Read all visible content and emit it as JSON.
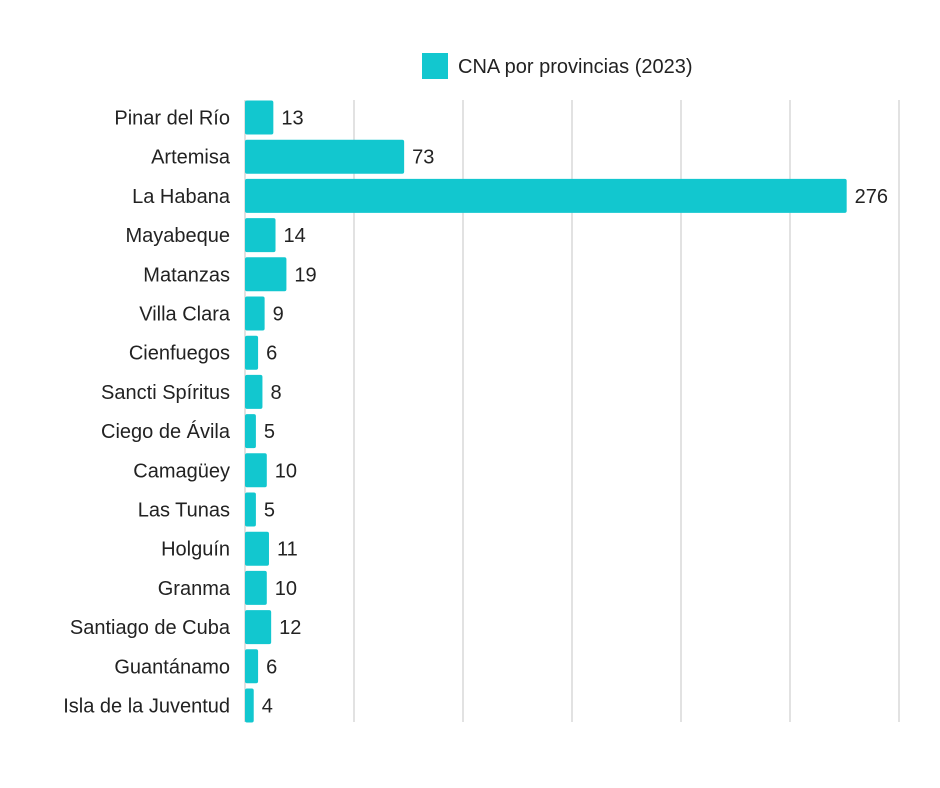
{
  "chart_data": {
    "type": "bar",
    "orientation": "horizontal",
    "categories": [
      "Pinar del Río",
      "Artemisa",
      "La Habana",
      "Mayabeque",
      "Matanzas",
      "Villa Clara",
      "Cienfuegos",
      "Sancti Spíritus",
      "Ciego de Ávila",
      "Camagüey",
      "Las Tunas",
      "Holguín",
      "Granma",
      "Santiago de Cuba",
      "Guantánamo",
      "Isla de la Juventud"
    ],
    "series": [
      {
        "name": "CNA por provincias (2023)",
        "values": [
          13,
          73,
          276,
          14,
          19,
          9,
          6,
          8,
          5,
          10,
          5,
          11,
          10,
          12,
          6,
          4
        ]
      }
    ],
    "xlim": [
      0,
      300
    ],
    "gridline_step": 50,
    "grid": true,
    "legend_position": "top",
    "data_labels": true
  },
  "colors": {
    "bar": "#12c7cf",
    "grid": "#d9d9d9",
    "text": "#222222"
  }
}
